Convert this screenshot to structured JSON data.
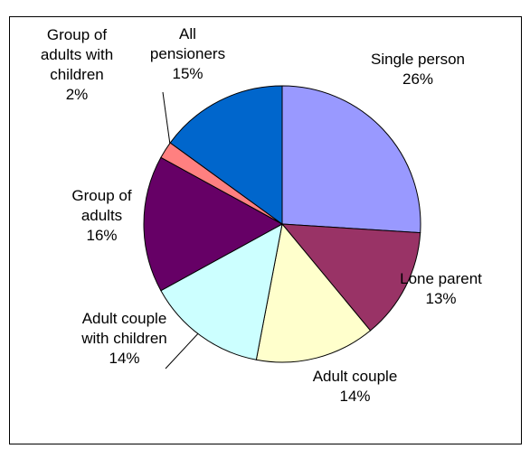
{
  "chart_data": {
    "type": "pie",
    "categories": [
      "Single person",
      "Lone parent",
      "Adult couple",
      "Adult couple with children",
      "Group of adults",
      "Group of adults with children",
      "All pensioners"
    ],
    "values": [
      26,
      13,
      14,
      14,
      16,
      2,
      15
    ],
    "value_labels": [
      "26%",
      "13%",
      "14%",
      "14%",
      "16%",
      "2%",
      "15%"
    ],
    "colors": [
      "#9999ff",
      "#993366",
      "#ffffcc",
      "#ccffff",
      "#660066",
      "#ff8080",
      "#0066cc"
    ]
  }
}
